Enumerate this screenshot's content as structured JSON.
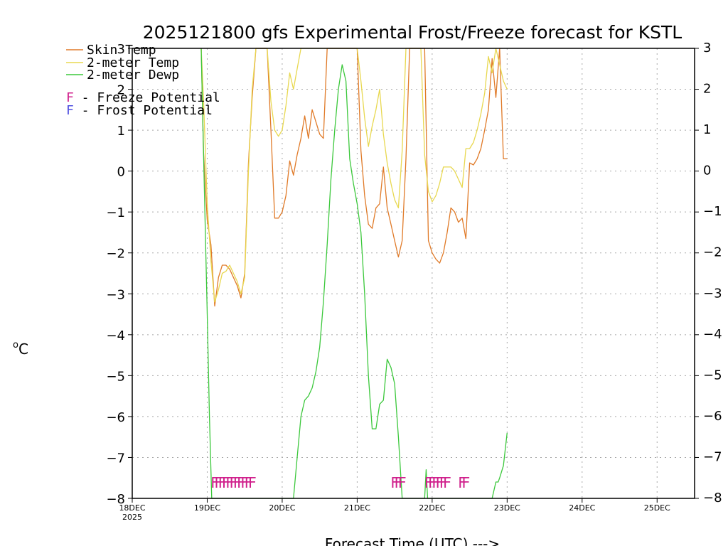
{
  "chart_data": {
    "type": "line",
    "title": "2025121800 gfs Experimental Frost/Freeze forecast for KSTL",
    "xlabel": "Forecast Time (UTC) --->",
    "ylabel": "oC",
    "ylabel_main": "C",
    "ylabel_sup": "o",
    "ylim": [
      -8,
      3
    ],
    "xlim": [
      0,
      7.5
    ],
    "yticks": [
      3,
      2,
      1,
      0,
      -1,
      -2,
      -3,
      -4,
      -5,
      -6,
      -7,
      -8
    ],
    "ytick_labels": [
      "3",
      "2",
      "1",
      "0",
      "−1",
      "−2",
      "−3",
      "−4",
      "−5",
      "−6",
      "−7",
      "−8"
    ],
    "xticks": [
      0,
      1,
      2,
      3,
      4,
      5,
      6,
      7
    ],
    "xtick_labels": [
      "18DEC",
      "19DEC",
      "20DEC",
      "21DEC",
      "22DEC",
      "23DEC",
      "24DEC",
      "25DEC"
    ],
    "xtick_year": "2025",
    "grid": true,
    "colors": {
      "skin": "#e07a28",
      "t2m": "#e8d850",
      "dewp": "#3cc83c",
      "freeze": "#d0208c",
      "frost": "#5050e0"
    },
    "legend": {
      "entries": [
        {
          "label": "Skin Temp",
          "color": "#e07a28"
        },
        {
          "label": "2-meter Temp",
          "color": "#e8d850"
        },
        {
          "label": "2-meter Dewp",
          "color": "#3cc83c"
        }
      ],
      "freeze": {
        "letter": "F",
        "text": " - Freeze Potential",
        "color": "#d0208c"
      },
      "frost": {
        "letter": "F",
        "text": " - Frost Potential",
        "color": "#5050e0"
      }
    },
    "series": [
      {
        "name": "Skin Temp",
        "x": [
          0.92,
          0.95,
          1.0,
          1.05,
          1.1,
          1.15,
          1.2,
          1.25,
          1.3,
          1.35,
          1.4,
          1.45,
          1.5,
          1.55,
          1.6,
          1.65,
          1.7,
          1.75,
          1.8,
          1.85,
          1.9,
          1.95,
          2.0,
          2.05,
          2.1,
          2.15,
          2.2,
          2.25,
          2.3,
          2.35,
          2.4,
          2.45,
          2.5,
          2.55,
          2.6,
          2.65,
          2.7,
          2.75,
          2.8,
          2.9,
          2.95,
          3.0,
          3.05,
          3.1,
          3.15,
          3.2,
          3.25,
          3.3,
          3.35,
          3.4,
          3.45,
          3.5,
          3.55,
          3.6,
          3.65,
          3.7,
          3.75,
          3.8,
          3.85,
          3.9,
          3.95,
          4.0,
          4.05,
          4.1,
          4.15,
          4.2,
          4.25,
          4.3,
          4.35,
          4.4,
          4.45,
          4.5,
          4.55,
          4.6,
          4.65,
          4.7,
          4.75,
          4.8,
          4.85,
          4.9,
          4.95,
          5.0
        ],
        "values": [
          3.0,
          0.5,
          -1.2,
          -1.8,
          -3.3,
          -2.6,
          -2.3,
          -2.3,
          -2.4,
          -2.6,
          -2.8,
          -3.1,
          -2.5,
          0.2,
          1.8,
          3.0,
          3.0,
          3.0,
          3.0,
          1.0,
          -1.15,
          -1.15,
          -1.0,
          -0.6,
          0.25,
          -0.1,
          0.4,
          0.8,
          1.35,
          0.8,
          1.5,
          1.2,
          0.9,
          0.8,
          3.0,
          3.0,
          3.0,
          3.0,
          3.0,
          3.0,
          3.0,
          3.0,
          0.5,
          -0.6,
          -1.3,
          -1.4,
          -0.9,
          -0.8,
          0.1,
          -0.9,
          -1.3,
          -1.7,
          -2.1,
          -1.7,
          0.3,
          3.0,
          3.0,
          3.0,
          3.0,
          3.0,
          -1.7,
          -2.0,
          -2.15,
          -2.25,
          -2.0,
          -1.5,
          -0.9,
          -1.0,
          -1.25,
          -1.15,
          -1.65,
          0.2,
          0.15,
          0.3,
          0.55,
          1.0,
          1.5,
          2.75,
          1.8,
          3.0,
          0.3,
          0.3
        ]
      },
      {
        "name": "2-meter Temp",
        "x": [
          0.92,
          0.95,
          1.0,
          1.05,
          1.1,
          1.15,
          1.2,
          1.25,
          1.3,
          1.35,
          1.4,
          1.45,
          1.5,
          1.55,
          1.6,
          1.65,
          1.7,
          1.75,
          1.8,
          1.85,
          1.9,
          1.95,
          2.0,
          2.05,
          2.1,
          2.15,
          2.2,
          2.25,
          2.3,
          2.35,
          2.4,
          2.45,
          2.5,
          2.55,
          2.6,
          2.65,
          2.7,
          2.75,
          2.8,
          2.85,
          2.9,
          2.95,
          3.0,
          3.05,
          3.1,
          3.15,
          3.2,
          3.25,
          3.3,
          3.35,
          3.4,
          3.45,
          3.5,
          3.55,
          3.6,
          3.65,
          3.7,
          3.75,
          3.8,
          3.85,
          3.9,
          3.95,
          4.0,
          4.05,
          4.1,
          4.15,
          4.2,
          4.25,
          4.3,
          4.35,
          4.4,
          4.45,
          4.5,
          4.55,
          4.6,
          4.65,
          4.7,
          4.75,
          4.8,
          4.85,
          4.9,
          4.95,
          5.0
        ],
        "values": [
          3.0,
          1.8,
          -0.8,
          -2.2,
          -3.2,
          -2.9,
          -2.5,
          -2.45,
          -2.3,
          -2.5,
          -2.7,
          -3.0,
          -2.6,
          0.0,
          2.0,
          3.0,
          3.0,
          3.0,
          3.0,
          1.7,
          1.0,
          0.85,
          1.0,
          1.6,
          2.4,
          2.0,
          2.5,
          3.0,
          3.0,
          3.0,
          3.0,
          3.0,
          3.0,
          3.0,
          3.0,
          3.0,
          3.0,
          3.0,
          3.0,
          3.0,
          3.0,
          3.0,
          3.0,
          2.2,
          1.3,
          0.6,
          1.1,
          1.5,
          2.0,
          0.9,
          0.2,
          -0.3,
          -0.7,
          -0.9,
          0.5,
          3.0,
          3.0,
          3.0,
          3.0,
          3.0,
          0.4,
          -0.5,
          -0.75,
          -0.6,
          -0.3,
          0.1,
          0.1,
          0.1,
          0.0,
          -0.2,
          -0.4,
          0.55,
          0.55,
          0.7,
          1.0,
          1.4,
          1.9,
          2.8,
          2.4,
          3.0,
          2.6,
          2.2,
          2.0
        ]
      },
      {
        "name": "2-meter Dewp",
        "x": [
          0.92,
          0.95,
          1.0,
          1.03,
          1.06,
          1.1,
          2.15,
          2.2,
          2.25,
          2.3,
          2.35,
          2.4,
          2.45,
          2.5,
          2.55,
          2.6,
          2.65,
          2.7,
          2.75,
          2.8,
          2.85,
          2.9,
          2.95,
          3.0,
          3.05,
          3.1,
          3.15,
          3.2,
          3.25,
          3.3,
          3.35,
          3.4,
          3.45,
          3.5,
          3.55,
          3.6,
          3.65,
          3.7,
          3.75,
          3.8,
          3.9,
          3.92,
          3.94,
          4.0,
          4.5,
          4.55,
          4.6,
          4.65,
          4.7,
          4.75,
          4.8,
          4.85,
          4.88,
          4.9,
          4.95,
          5.0
        ],
        "values": [
          3.0,
          0.5,
          -3.5,
          -6.0,
          -8.0,
          -8.0,
          -8.0,
          -7.0,
          -6.0,
          -5.6,
          -5.5,
          -5.3,
          -4.9,
          -4.3,
          -3.2,
          -1.8,
          -0.2,
          1.0,
          2.0,
          2.6,
          2.2,
          0.3,
          -0.3,
          -0.8,
          -1.5,
          -3.0,
          -5.0,
          -6.3,
          -6.3,
          -5.7,
          -5.6,
          -4.6,
          -4.8,
          -5.2,
          -6.5,
          -8.0,
          -8.0,
          -8.0,
          -8.0,
          -8.0,
          -8.0,
          -7.3,
          -8.0,
          -8.0,
          -8.0,
          -8.0,
          -8.0,
          -8.0,
          -8.0,
          -8.0,
          -8.0,
          -7.6,
          -7.6,
          -7.5,
          -7.2,
          -6.4
        ]
      }
    ],
    "freeze_flags": [
      {
        "x": 1.1,
        "label": "F"
      },
      {
        "x": 1.15,
        "label": "F"
      },
      {
        "x": 1.2,
        "label": "F"
      },
      {
        "x": 1.25,
        "label": "F"
      },
      {
        "x": 1.3,
        "label": "F"
      },
      {
        "x": 1.35,
        "label": "F"
      },
      {
        "x": 1.4,
        "label": "F"
      },
      {
        "x": 1.45,
        "label": "F"
      },
      {
        "x": 1.5,
        "label": "F"
      },
      {
        "x": 1.55,
        "label": "F"
      },
      {
        "x": 1.6,
        "label": "F"
      },
      {
        "x": 3.5,
        "label": "F"
      },
      {
        "x": 3.55,
        "label": "F"
      },
      {
        "x": 3.6,
        "label": "F"
      },
      {
        "x": 3.95,
        "label": "F"
      },
      {
        "x": 4.0,
        "label": "F"
      },
      {
        "x": 4.05,
        "label": "F"
      },
      {
        "x": 4.1,
        "label": "F"
      },
      {
        "x": 4.15,
        "label": "F"
      },
      {
        "x": 4.2,
        "label": "F"
      },
      {
        "x": 4.4,
        "label": "F"
      },
      {
        "x": 4.45,
        "label": "F"
      }
    ],
    "flag_level": -7.6
  }
}
